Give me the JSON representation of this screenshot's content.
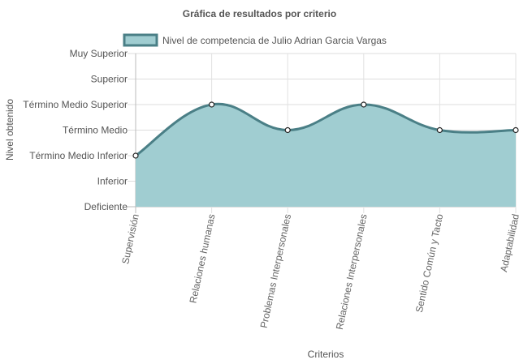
{
  "chart_data": {
    "type": "area",
    "title": "Gráfica de resultados por criterio",
    "xlabel": "Criterios",
    "ylabel": "Nivel obtenido",
    "y_levels": [
      "Deficiente",
      "Inferior",
      "Término Medio Inferior",
      "Término Medio",
      "Término Medio Superior",
      "Superior",
      "Muy Superior"
    ],
    "categories": [
      "Supervisión",
      "Relaciones humanas",
      "Problemas Interpersonales",
      "Relaciones Interpersonales",
      "Sentido Común y Tacto",
      "Adaptabilidad"
    ],
    "series": [
      {
        "name": "Nivel de competencia de Julio Adrian Garcia Vargas",
        "values": [
          "Término Medio Inferior",
          "Término Medio Superior",
          "Término Medio",
          "Término Medio Superior",
          "Término Medio",
          "Término Medio"
        ],
        "fill_color": "#a0cdd1",
        "line_color": "#4a7f86"
      }
    ],
    "grid": true,
    "legend_position": "top"
  }
}
